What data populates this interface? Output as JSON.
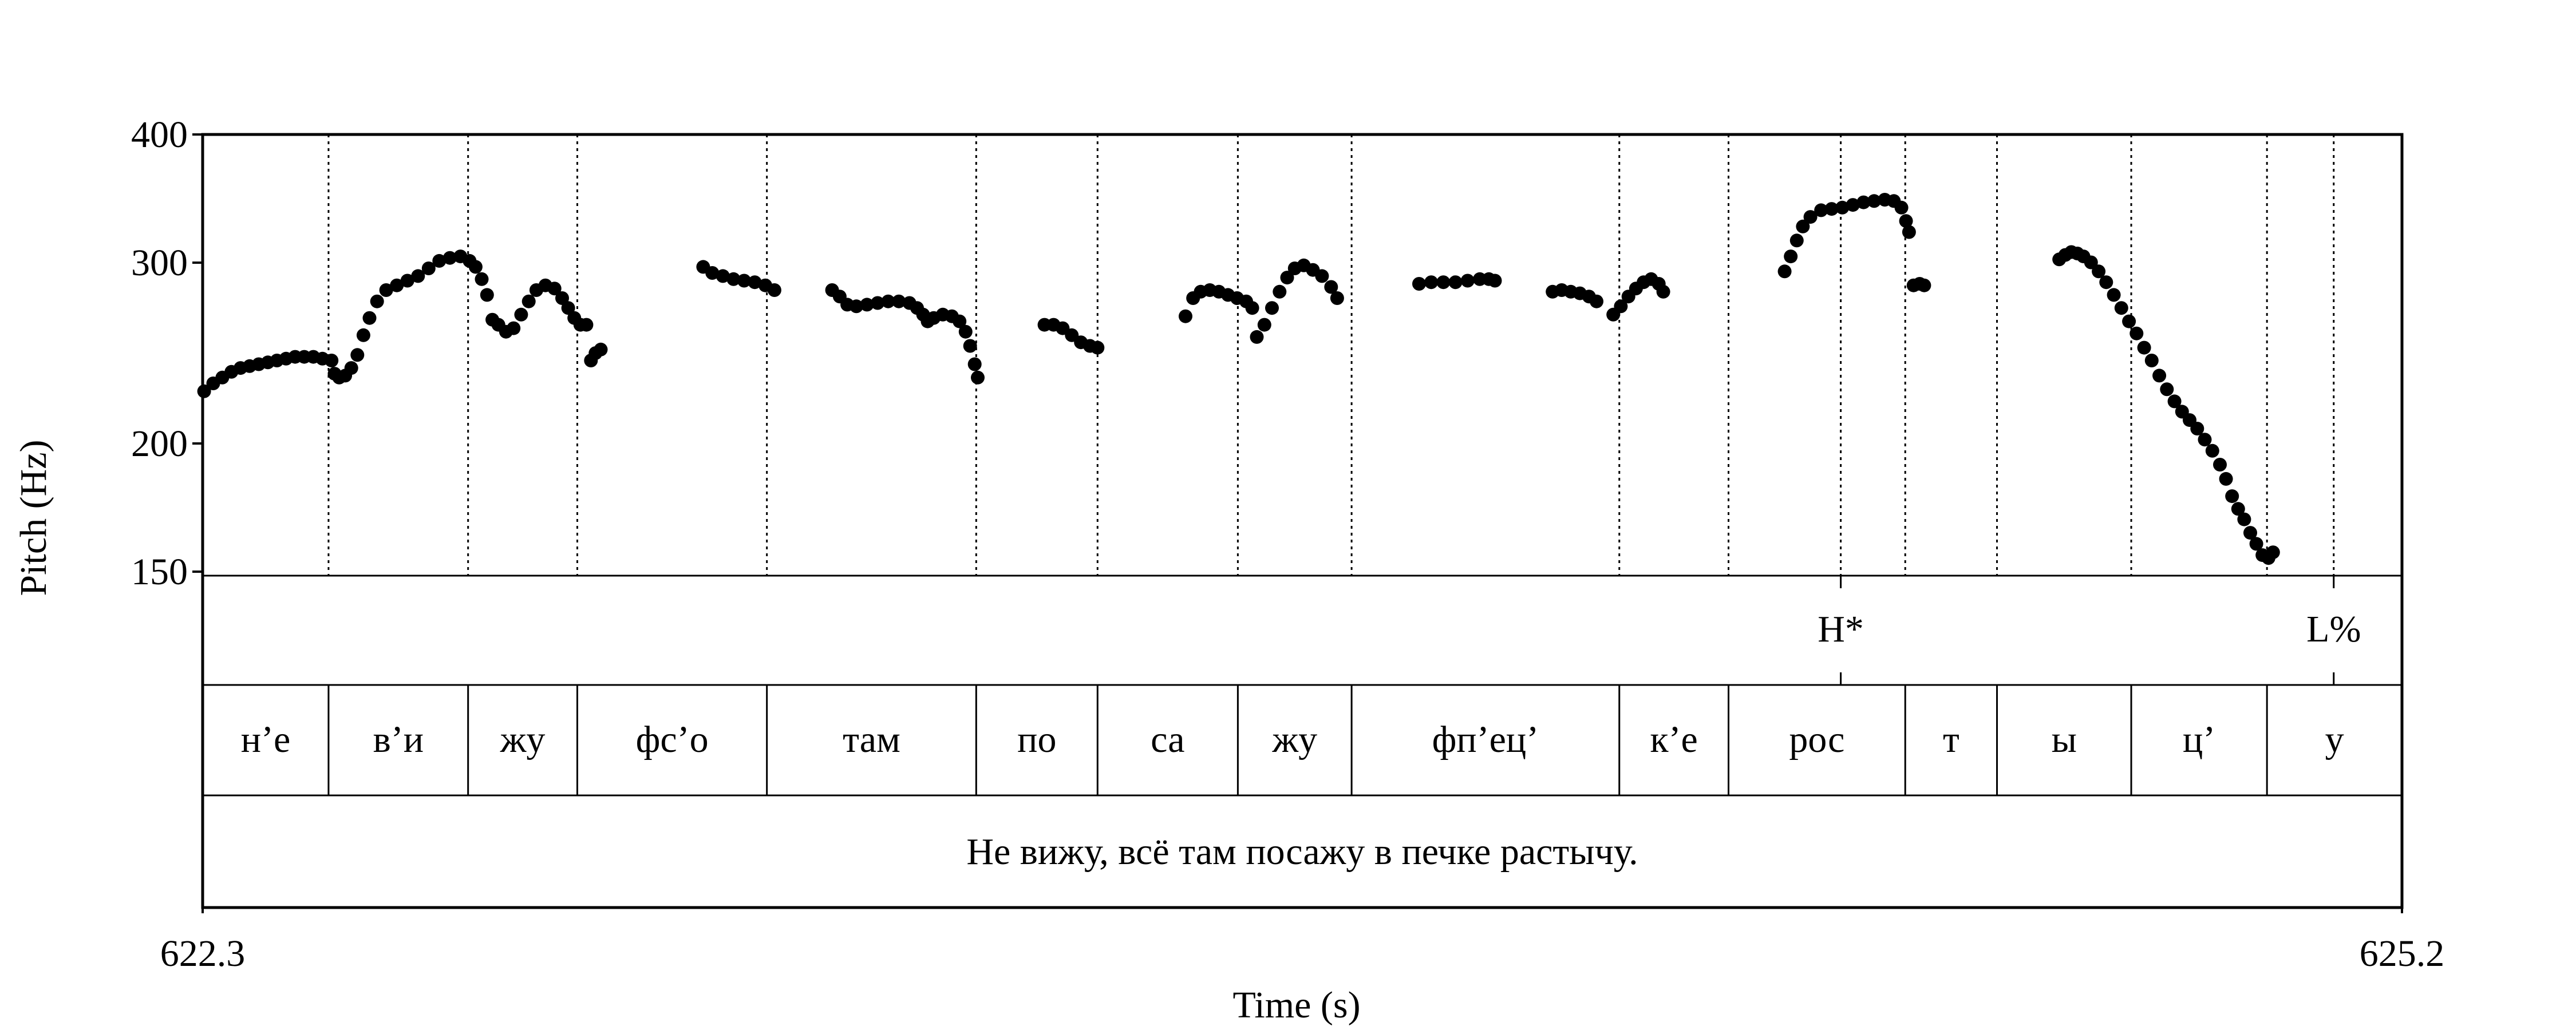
{
  "chart_data": {
    "type": "scatter",
    "xlabel": "Time (s)",
    "ylabel": "Pitch (Hz)",
    "xlim": [
      622.3,
      625.2
    ],
    "ylim": [
      150,
      400
    ],
    "y_scale": "log",
    "x_ticks": [
      "622.3",
      "625.2"
    ],
    "y_ticks": [
      {
        "value": 150,
        "label": "150"
      },
      {
        "value": 200,
        "label": "200"
      },
      {
        "value": 300,
        "label": "300"
      },
      {
        "value": 400,
        "label": "400"
      }
    ],
    "marker_color": "#000000",
    "pitch_segments": [
      {
        "points": [
          [
            622.302,
            226
          ],
          [
            622.314,
            230
          ],
          [
            622.326,
            233
          ],
          [
            622.338,
            236
          ],
          [
            622.35,
            238
          ],
          [
            622.362,
            239
          ],
          [
            622.374,
            240
          ],
          [
            622.386,
            241
          ],
          [
            622.398,
            242
          ],
          [
            622.41,
            243
          ],
          [
            622.422,
            244
          ],
          [
            622.434,
            244
          ],
          [
            622.446,
            244
          ],
          [
            622.458,
            243
          ],
          [
            622.47,
            242
          ]
        ]
      },
      {
        "points": [
          [
            622.474,
            235
          ],
          [
            622.48,
            233
          ],
          [
            622.488,
            234
          ],
          [
            622.496,
            238
          ],
          [
            622.504,
            245
          ],
          [
            622.512,
            256
          ],
          [
            622.52,
            266
          ],
          [
            622.53,
            276
          ],
          [
            622.542,
            283
          ],
          [
            622.556,
            286
          ],
          [
            622.57,
            289
          ],
          [
            622.584,
            292
          ],
          [
            622.598,
            297
          ],
          [
            622.612,
            302
          ],
          [
            622.626,
            304
          ],
          [
            622.64,
            305
          ],
          [
            622.652,
            302
          ],
          [
            622.66,
            298
          ],
          [
            622.668,
            290
          ],
          [
            622.675,
            280
          ]
        ]
      },
      {
        "points": [
          [
            622.682,
            265
          ],
          [
            622.69,
            262
          ],
          [
            622.7,
            258
          ],
          [
            622.71,
            260
          ],
          [
            622.72,
            268
          ],
          [
            622.73,
            276
          ],
          [
            622.74,
            283
          ],
          [
            622.752,
            286
          ],
          [
            622.764,
            284
          ],
          [
            622.774,
            278
          ],
          [
            622.782,
            272
          ],
          [
            622.79,
            266
          ],
          [
            622.798,
            262
          ],
          [
            622.806,
            262
          ]
        ]
      },
      {
        "points": [
          [
            622.812,
            242
          ],
          [
            622.818,
            246
          ],
          [
            622.825,
            248
          ]
        ]
      },
      {
        "points": [
          [
            622.96,
            298
          ],
          [
            622.972,
            294
          ],
          [
            622.986,
            292
          ],
          [
            623.0,
            290
          ],
          [
            623.014,
            289
          ],
          [
            623.028,
            288
          ],
          [
            623.042,
            286
          ],
          [
            623.054,
            283
          ]
        ]
      },
      {
        "points": [
          [
            623.13,
            283
          ],
          [
            623.14,
            279
          ],
          [
            623.15,
            274
          ],
          [
            623.162,
            273
          ],
          [
            623.176,
            274
          ],
          [
            623.19,
            275
          ],
          [
            623.204,
            276
          ],
          [
            623.218,
            276
          ],
          [
            623.232,
            275
          ],
          [
            623.242,
            272
          ],
          [
            623.25,
            268
          ],
          [
            623.256,
            264
          ],
          [
            623.264,
            266
          ],
          [
            623.276,
            268
          ],
          [
            623.288,
            267
          ],
          [
            623.298,
            264
          ],
          [
            623.306,
            258
          ],
          [
            623.312,
            250
          ],
          [
            623.318,
            240
          ],
          [
            623.322,
            233
          ]
        ]
      },
      {
        "points": [
          [
            623.41,
            262
          ],
          [
            623.422,
            262
          ],
          [
            623.434,
            260
          ],
          [
            623.446,
            256
          ],
          [
            623.458,
            252
          ],
          [
            623.47,
            250
          ],
          [
            623.48,
            249
          ]
        ]
      },
      {
        "points": [
          [
            623.596,
            267
          ],
          [
            623.606,
            278
          ],
          [
            623.616,
            282
          ],
          [
            623.628,
            283
          ],
          [
            623.64,
            282
          ],
          [
            623.652,
            280
          ],
          [
            623.664,
            278
          ],
          [
            623.676,
            276
          ],
          [
            623.684,
            272
          ]
        ]
      },
      {
        "points": [
          [
            623.69,
            255
          ],
          [
            623.7,
            262
          ],
          [
            623.71,
            272
          ],
          [
            623.72,
            282
          ],
          [
            623.73,
            291
          ],
          [
            623.74,
            297
          ],
          [
            623.752,
            299
          ],
          [
            623.764,
            296
          ],
          [
            623.776,
            292
          ],
          [
            623.788,
            285
          ],
          [
            623.796,
            278
          ]
        ]
      },
      {
        "points": [
          [
            623.904,
            287
          ],
          [
            623.92,
            288
          ],
          [
            623.936,
            288
          ],
          [
            623.952,
            288
          ],
          [
            623.968,
            289
          ],
          [
            623.984,
            290
          ],
          [
            623.996,
            290
          ],
          [
            624.004,
            289
          ]
        ]
      },
      {
        "points": [
          [
            624.08,
            282
          ],
          [
            624.092,
            283
          ],
          [
            624.104,
            282
          ],
          [
            624.116,
            281
          ],
          [
            624.128,
            279
          ],
          [
            624.138,
            276
          ]
        ]
      },
      {
        "points": [
          [
            624.16,
            268
          ],
          [
            624.17,
            273
          ],
          [
            624.18,
            279
          ],
          [
            624.19,
            284
          ],
          [
            624.2,
            288
          ],
          [
            624.21,
            290
          ],
          [
            624.22,
            287
          ],
          [
            624.226,
            282
          ]
        ]
      },
      {
        "points": [
          [
            624.386,
            295
          ],
          [
            624.394,
            305
          ],
          [
            624.402,
            316
          ],
          [
            624.41,
            326
          ],
          [
            624.42,
            333
          ],
          [
            624.434,
            338
          ],
          [
            624.448,
            339
          ],
          [
            624.462,
            340
          ],
          [
            624.476,
            342
          ],
          [
            624.49,
            344
          ],
          [
            624.504,
            345
          ],
          [
            624.518,
            346
          ],
          [
            624.53,
            345
          ],
          [
            624.54,
            340
          ],
          [
            624.546,
            330
          ],
          [
            624.55,
            322
          ]
        ]
      },
      {
        "points": [
          [
            624.556,
            286
          ],
          [
            624.564,
            287
          ],
          [
            624.57,
            286
          ]
        ]
      },
      {
        "points": [
          [
            624.748,
            303
          ],
          [
            624.756,
            306
          ],
          [
            624.764,
            308
          ],
          [
            624.772,
            307
          ],
          [
            624.78,
            305
          ],
          [
            624.79,
            301
          ],
          [
            624.8,
            295
          ],
          [
            624.81,
            288
          ],
          [
            624.82,
            280
          ],
          [
            624.83,
            272
          ],
          [
            624.84,
            264
          ],
          [
            624.85,
            257
          ],
          [
            624.86,
            249
          ],
          [
            624.87,
            242
          ],
          [
            624.88,
            234
          ],
          [
            624.89,
            227
          ],
          [
            624.9,
            221
          ],
          [
            624.91,
            216
          ],
          [
            624.92,
            212
          ],
          [
            624.93,
            208
          ],
          [
            624.94,
            203
          ],
          [
            624.95,
            198
          ],
          [
            624.96,
            192
          ],
          [
            624.968,
            186
          ],
          [
            624.976,
            179
          ],
          [
            624.984,
            174
          ],
          [
            624.992,
            170
          ],
          [
            625.0,
            165
          ],
          [
            625.008,
            161
          ],
          [
            625.016,
            157
          ],
          [
            625.024,
            156
          ],
          [
            625.03,
            158
          ]
        ]
      }
    ],
    "tier1_boundaries": [
      624.46,
      625.11
    ],
    "tier1_labels": [
      {
        "text": "H*",
        "time": 624.46
      },
      {
        "text": "L%",
        "time": 625.11
      }
    ],
    "tier2_boundaries": [
      622.466,
      622.65,
      622.794,
      623.044,
      623.32,
      623.48,
      623.665,
      623.815,
      624.168,
      624.312,
      624.545,
      624.666,
      624.843,
      625.022
    ],
    "tier2_labels": [
      "н’е",
      "в’и",
      "жу",
      "фс’о",
      "там",
      "по",
      "са",
      "жу",
      "фп’ец’",
      "к’е",
      "рос",
      "т",
      "ы",
      "ц’",
      "у"
    ],
    "tier3_label": "Не вижу, всё там посажу в печке растычу."
  }
}
